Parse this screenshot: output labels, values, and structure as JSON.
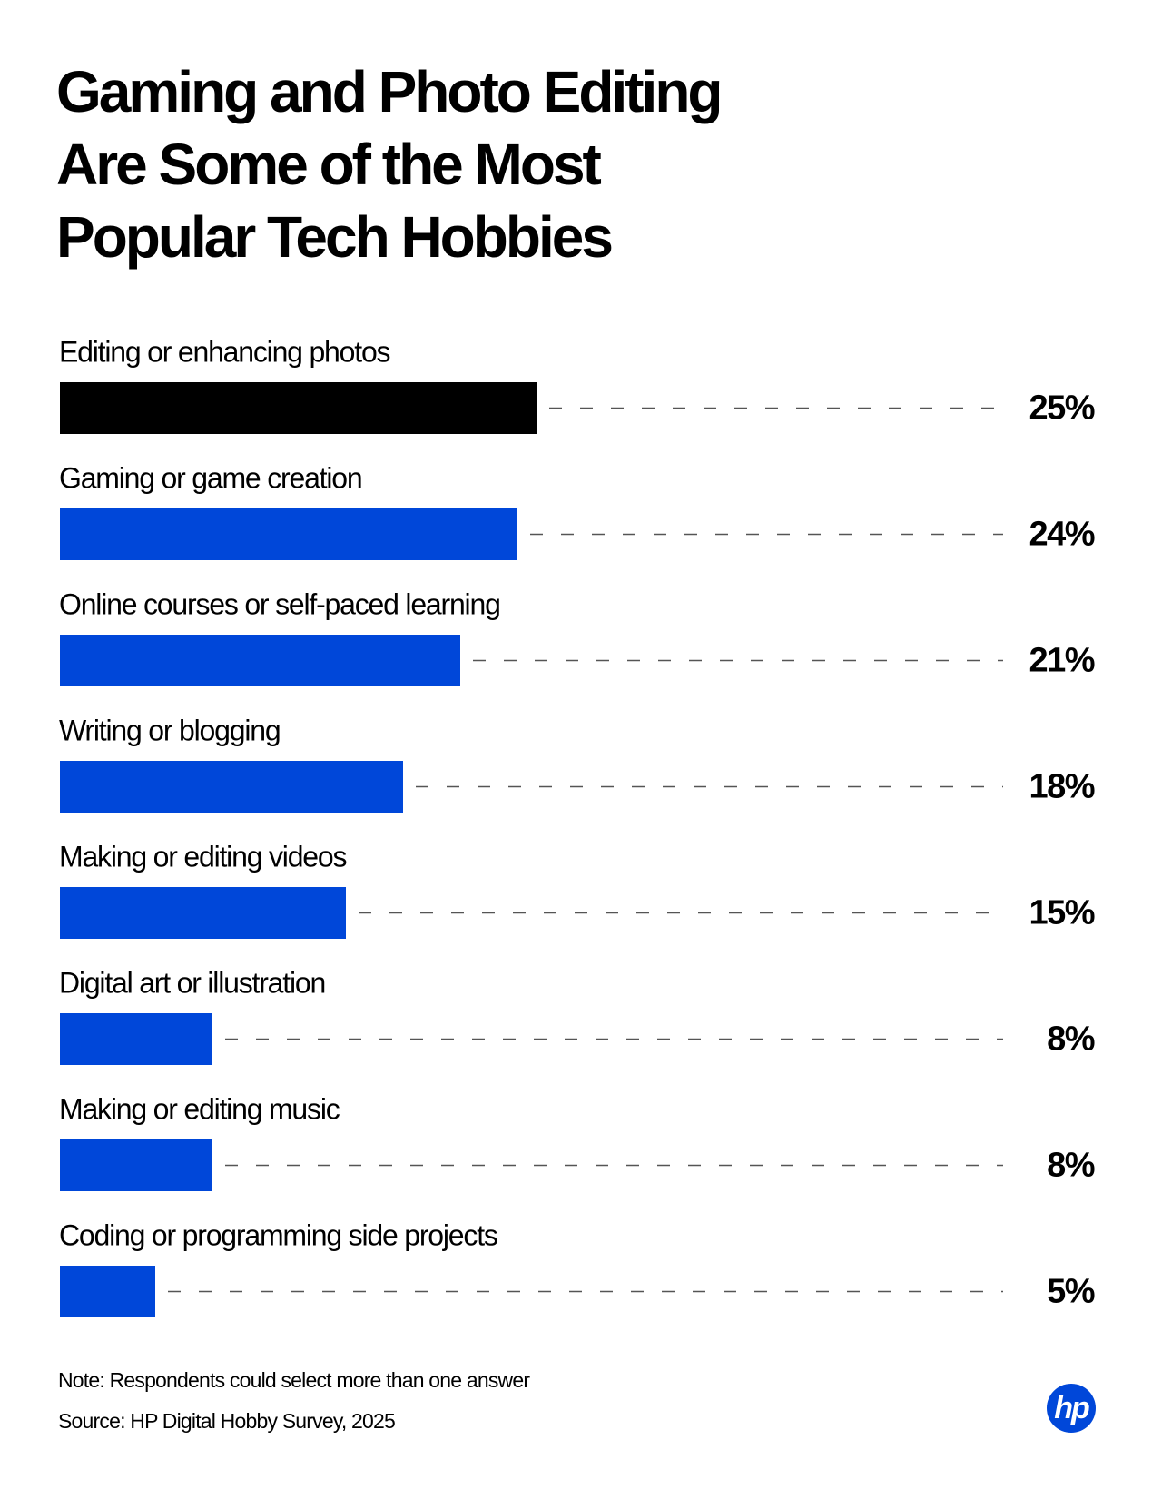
{
  "chart_data": {
    "type": "bar",
    "title": [
      "Gaming and Photo Editing",
      "Are Some of the Most",
      "Popular Tech Hobbies"
    ],
    "categories": [
      "Editing or enhancing photos",
      "Gaming or game creation",
      "Online courses or self-paced learning",
      "Writing or blogging",
      "Making or editing videos",
      "Digital art or illustration",
      "Making or editing music",
      "Coding or programming side projects"
    ],
    "values": [
      25,
      24,
      21,
      18,
      15,
      8,
      8,
      5
    ],
    "value_labels": [
      "25%",
      "24%",
      "21%",
      "18%",
      "15%",
      "8%",
      "8%",
      "5%"
    ],
    "colors": [
      "#000000",
      "#0047d9",
      "#0047d9",
      "#0047d9",
      "#0047d9",
      "#0047d9",
      "#0047d9",
      "#0047d9"
    ],
    "note": "Note:  Respondents could select more than one answer",
    "source": "Source: HP Digital Hobby Survey, 2025",
    "logo": "hp"
  }
}
